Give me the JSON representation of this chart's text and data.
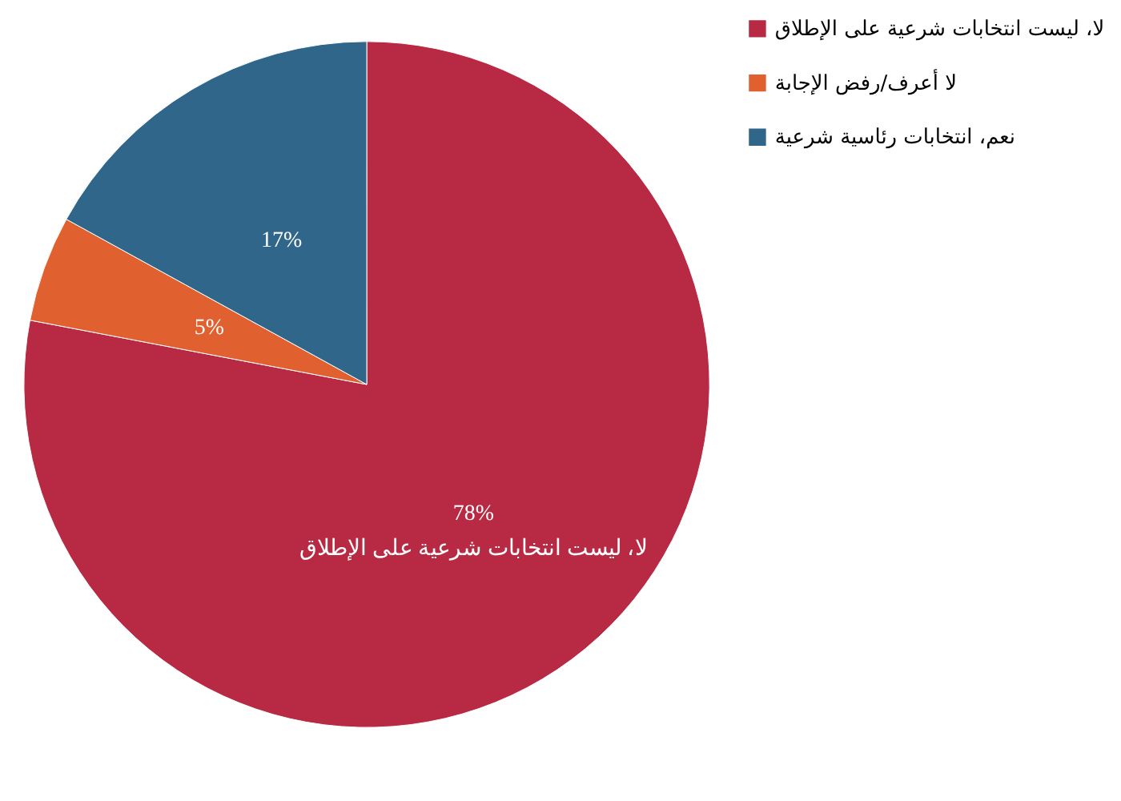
{
  "chart_data": {
    "type": "pie",
    "categories": [
      "لا، ليست انتخابات شرعية على الإطلاق",
      "لا أعرف/رفض الإجابة",
      "نعم، انتخابات رئاسية شرعية"
    ],
    "values": [
      78,
      5,
      17
    ],
    "colors": [
      "#b82a43",
      "#e0602f",
      "#2f6689"
    ],
    "value_labels": [
      "78%\nلا، ليست انتخابات شرعية على الإطلاق",
      "5%",
      "17%"
    ],
    "legend": "right"
  }
}
